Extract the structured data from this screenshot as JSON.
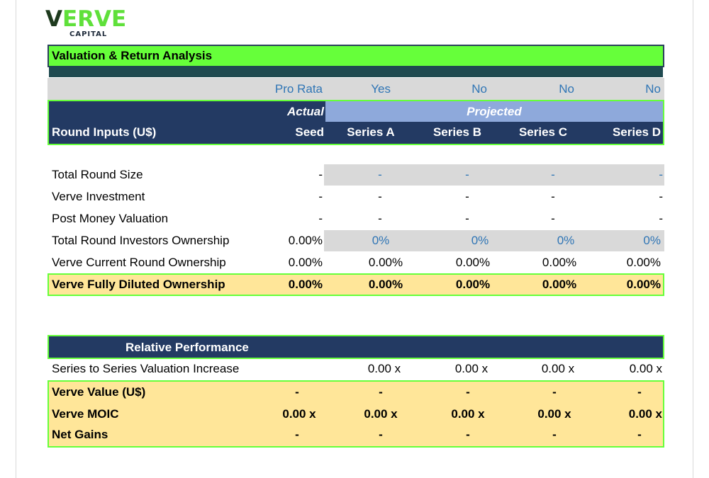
{
  "logo": {
    "main": "ERVE",
    "sub": "CAPITAL",
    "v": "V"
  },
  "title": "Valuation & Return Analysis",
  "pro_rata": {
    "label": "Pro Rata",
    "values": [
      "Yes",
      "No",
      "No",
      "No"
    ]
  },
  "phase": {
    "actual": "Actual",
    "projected": "Projected"
  },
  "header": {
    "label": "Round Inputs (U$)",
    "rounds": [
      "Seed",
      "Series A",
      "Series B",
      "Series C",
      "Series D"
    ]
  },
  "inputs": [
    {
      "label": "Total Round Size",
      "values": [
        "-",
        "-",
        "-",
        "-",
        "-"
      ]
    },
    {
      "label": "Verve Investment",
      "values": [
        "-",
        "-",
        "-",
        "-",
        "-"
      ]
    },
    {
      "label": "Post Money Valuation",
      "values": [
        "-",
        "-",
        "-",
        "-",
        "-"
      ]
    },
    {
      "label": "Total Round Investors Ownership",
      "values": [
        "0.00%",
        "0%",
        "0%",
        "0%",
        "0%"
      ]
    },
    {
      "label": "Verve Current Round Ownership",
      "values": [
        "0.00%",
        "0.00%",
        "0.00%",
        "0.00%",
        "0.00%"
      ]
    },
    {
      "label": "Verve Fully Diluted Ownership",
      "values": [
        "0.00%",
        "0.00%",
        "0.00%",
        "0.00%",
        "0.00%"
      ]
    }
  ],
  "relative": {
    "title": "Relative Performance",
    "rows": [
      {
        "label": "Series to Series Valuation Increase",
        "values": [
          "",
          "0.00 x",
          "0.00 x",
          "0.00 x",
          "0.00 x"
        ]
      },
      {
        "label": "Verve Value (U$)",
        "values": [
          "-",
          "-",
          "-",
          "-",
          "-"
        ]
      },
      {
        "label": "Verve MOIC",
        "values": [
          "0.00 x",
          "0.00 x",
          "0.00 x",
          "0.00 x",
          "0.00 x"
        ]
      },
      {
        "label": "Net Gains",
        "values": [
          "-",
          "-",
          "-",
          "-",
          "-"
        ]
      }
    ]
  },
  "colors": {
    "green": "#66ff3a",
    "navy": "#233a63",
    "teal": "#1f4a50",
    "projected": "#8ea9db",
    "yellow": "#ffe699",
    "gray": "#d9d9d9",
    "blue_text": "#2f75b5"
  }
}
